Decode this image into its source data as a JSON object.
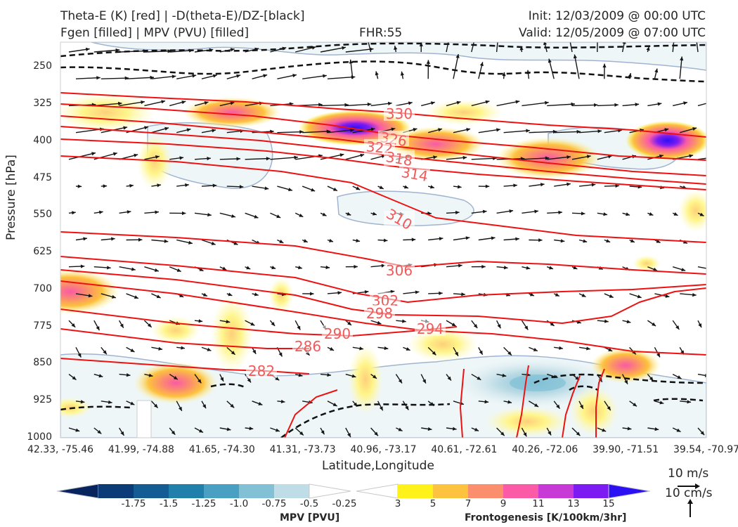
{
  "header": {
    "line1_left": "Theta-E (K) [red] | -D(theta-E)/DZ-[black]",
    "line2_left": "Fgen [filled] | MPV (PVU) [filled]",
    "fhr": "FHR:55",
    "init": "Init: 12/03/2009 @ 00:00 UTC",
    "valid": "Valid: 12/05/2009 @ 07:00 UTC"
  },
  "chart_data": {
    "type": "cross-section",
    "xlabel": "Latitude,Longitude",
    "ylabel": "Pressure [hPa]",
    "y_ticks": [
      "250",
      "325",
      "400",
      "475",
      "550",
      "625",
      "700",
      "775",
      "850",
      "925",
      "1000"
    ],
    "ylim": [
      1000,
      200
    ],
    "x_ticks": [
      "42.33, -75.46",
      "41.99, -74.88",
      "41.65, -74.30",
      "41.31, -73.73",
      "40.96, -73.17",
      "40.61, -72.61",
      "40.26, -72.06",
      "39.90, -71.51",
      "39.54, -70.97"
    ],
    "theta_e_labels": [
      "330",
      "326",
      "322",
      "318",
      "314",
      "310",
      "306",
      "302",
      "298",
      "294",
      "290",
      "286",
      "282"
    ],
    "theta_e_color": "#ee1111",
    "mpv_colorbar": {
      "title": "MPV [PVU]",
      "ticks": [
        "-1.75",
        "-1.5",
        "-1.25",
        "-1.0",
        "-0.75",
        "-0.5",
        "-0.25"
      ],
      "colors": [
        "#08245e",
        "#0b3c78",
        "#135c94",
        "#2180ab",
        "#4aa0c3",
        "#82c0d6",
        "#bfdde6",
        "#ffffff"
      ]
    },
    "fgen_colorbar": {
      "title": "Frontogenesis [K/100km/3hr]",
      "ticks": [
        "3",
        "5",
        "7",
        "9",
        "11",
        "13",
        "15"
      ],
      "colors": [
        "#ffffff",
        "#fff21a",
        "#fdc23e",
        "#fb8e6c",
        "#fa5aa6",
        "#c83ad6",
        "#7c1cf2",
        "#2b10f4"
      ]
    },
    "wind_reference": {
      "horizontal": "10 m/s",
      "vertical": "10 cm/s"
    }
  }
}
